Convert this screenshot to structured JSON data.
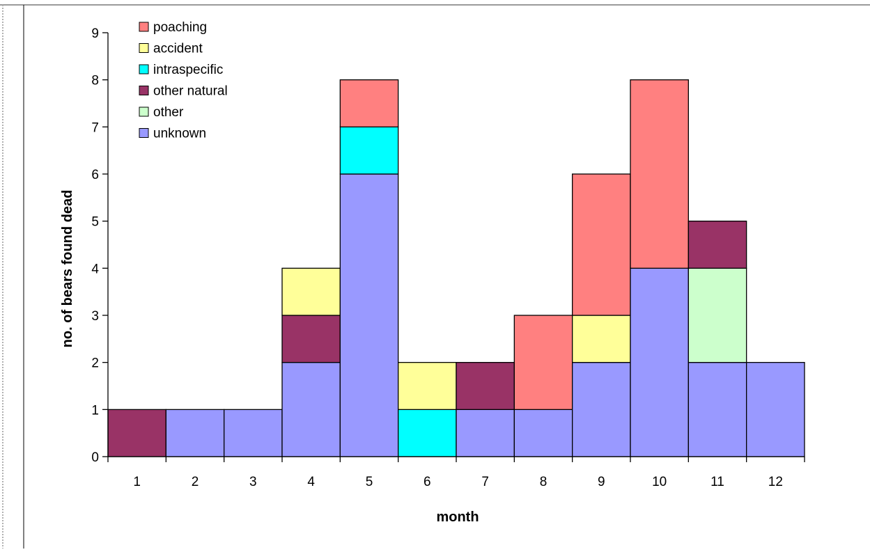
{
  "chart_data": {
    "type": "bar",
    "stacked": true,
    "xlabel": "month",
    "ylabel": "no. of bears found dead",
    "ylim": [
      0,
      9
    ],
    "yticks": [
      0,
      1,
      2,
      3,
      4,
      5,
      6,
      7,
      8,
      9
    ],
    "categories": [
      "1",
      "2",
      "3",
      "4",
      "5",
      "6",
      "7",
      "8",
      "9",
      "10",
      "11",
      "12"
    ],
    "grid": false,
    "legend_position": "top-left",
    "series": [
      {
        "name": "unknown",
        "color": "#9999ff",
        "values": [
          0,
          1,
          1,
          2,
          6,
          0,
          1,
          1,
          2,
          4,
          2,
          2
        ]
      },
      {
        "name": "other",
        "color": "#ccffcc",
        "values": [
          0,
          0,
          0,
          0,
          0,
          0,
          0,
          0,
          0,
          0,
          2,
          0
        ]
      },
      {
        "name": "other natural",
        "color": "#993366",
        "values": [
          1,
          0,
          0,
          1,
          0,
          0,
          1,
          0,
          0,
          0,
          1,
          0
        ]
      },
      {
        "name": "intraspecific",
        "color": "#00ffff",
        "values": [
          0,
          0,
          0,
          0,
          1,
          1,
          0,
          0,
          0,
          0,
          0,
          0
        ]
      },
      {
        "name": "accident",
        "color": "#ffff99",
        "values": [
          0,
          0,
          0,
          1,
          0,
          1,
          0,
          0,
          1,
          0,
          0,
          0
        ]
      },
      {
        "name": "poaching",
        "color": "#ff8080",
        "values": [
          0,
          0,
          0,
          0,
          1,
          0,
          0,
          2,
          3,
          4,
          0,
          0
        ]
      }
    ],
    "legend_order": [
      "poaching",
      "accident",
      "intraspecific",
      "other natural",
      "other",
      "unknown"
    ]
  }
}
